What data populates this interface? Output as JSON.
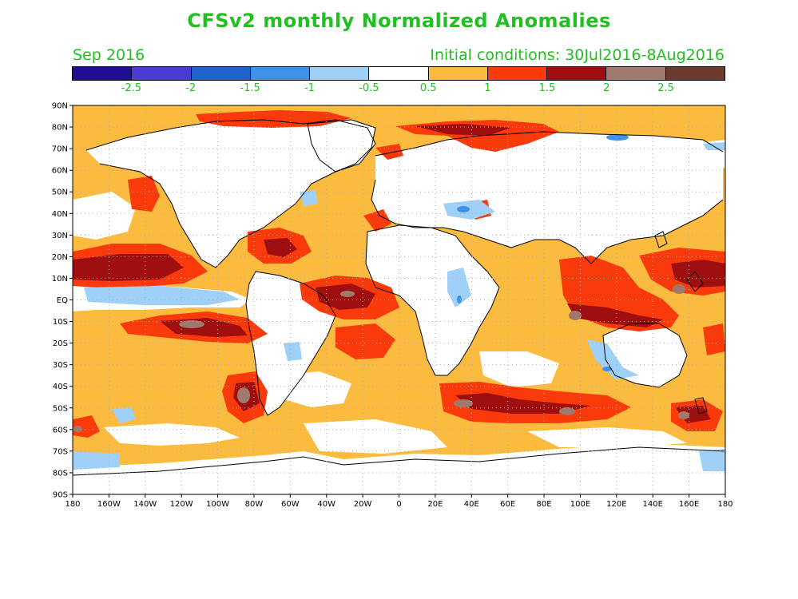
{
  "header": {
    "title": "CFSv2 monthly Normalized Anomalies",
    "month": "Sep 2016",
    "initial_conditions": "Initial conditions: 30Jul2016-8Aug2016"
  },
  "colorbar": {
    "colors": [
      "#1f0e92",
      "#4a3bd2",
      "#1e62cc",
      "#3d92e8",
      "#9fd0f7",
      "#ffffff",
      "#fbbb3e",
      "#fb3a0c",
      "#a00f0f",
      "#9f7a6c",
      "#6b3a2c"
    ],
    "labels": [
      "-2.5",
      "-2",
      "-1.5",
      "-1",
      "-0.5",
      "0.5",
      "1",
      "1.5",
      "2",
      "2.5"
    ]
  },
  "map": {
    "lat_labels": [
      "90N",
      "80N",
      "70N",
      "60N",
      "50N",
      "40N",
      "30N",
      "20N",
      "10N",
      "EQ",
      "10S",
      "20S",
      "30S",
      "40S",
      "50S",
      "60S",
      "70S",
      "80S",
      "90S"
    ],
    "lon_labels": [
      "180",
      "160W",
      "140W",
      "120W",
      "100W",
      "80W",
      "60W",
      "40W",
      "20W",
      "0",
      "20E",
      "40E",
      "60E",
      "80E",
      "100E",
      "120E",
      "140E",
      "160E",
      "180"
    ],
    "anomaly_colors": {
      "ocean_warm_1": "#fbbb3e",
      "warm_2": "#fb3a0c",
      "warm_3": "#a00f0f",
      "warm_4": "#9f7a6c",
      "cool_1": "#9fd0f7",
      "cool_2": "#3d92e8",
      "neutral": "#ffffff",
      "coast": "#000000"
    }
  }
}
